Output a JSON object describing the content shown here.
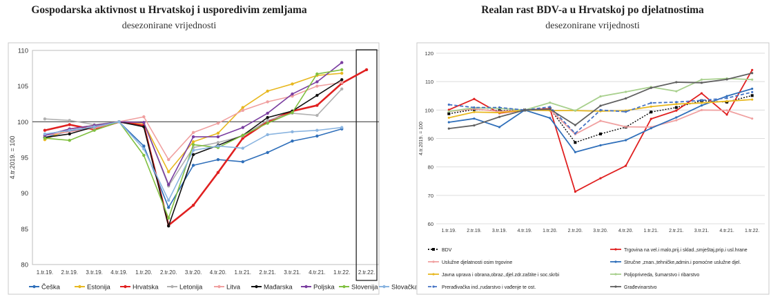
{
  "chart_data": [
    {
      "type": "line",
      "title": "Gospodarska aktivnost u Hrvatskoj i usporedivim zemljama",
      "subtitle": "desezonirane vrijednosti",
      "ylabel": "4.tr.2019. = 100",
      "xlabel": "",
      "ylim": [
        80,
        110
      ],
      "yticks": [
        80,
        85,
        90,
        95,
        100,
        105,
        110
      ],
      "grid": false,
      "legend": "bottom",
      "reference_line": 100,
      "highlight_box_category": "2.tr.22.",
      "categories": [
        "1.tr.19.",
        "2.tr.19.",
        "3.tr.19.",
        "4.tr.19.",
        "1.tr.20.",
        "2.tr.20.",
        "3.tr.20.",
        "4.tr.20.",
        "1.tr.21.",
        "2.tr.21.",
        "3.tr.21.",
        "4.tr.21.",
        "1.tr.22.",
        "2.tr.22."
      ],
      "series": [
        {
          "name": "Češka",
          "color": "#2f6fba",
          "values": [
            97.8,
            98.7,
            99.2,
            100,
            96.6,
            88.0,
            93.9,
            94.7,
            94.4,
            95.7,
            97.3,
            98.0,
            99.0,
            null
          ]
        },
        {
          "name": "Estonija",
          "color": "#e8b820",
          "values": [
            97.5,
            99.0,
            99.5,
            100,
            99.8,
            93.0,
            97.2,
            98.4,
            102.0,
            104.3,
            105.3,
            106.5,
            106.8,
            null
          ]
        },
        {
          "name": "Hrvatska",
          "color": "#e02020",
          "values": [
            98.8,
            99.6,
            98.9,
            100,
            99.5,
            85.5,
            88.3,
            92.9,
            97.7,
            100.0,
            101.5,
            102.3,
            105.4,
            107.3
          ]
        },
        {
          "name": "Letonija",
          "color": "#b0b0b0",
          "values": [
            100.4,
            100.2,
            99.6,
            100,
            99.9,
            91.0,
            96.4,
            97.1,
            98.0,
            100.2,
            101.2,
            100.9,
            104.6,
            null
          ]
        },
        {
          "name": "Litva",
          "color": "#f0a0a0",
          "values": [
            98.1,
            98.6,
            99.1,
            100,
            100.7,
            94.7,
            98.5,
            99.8,
            101.6,
            102.8,
            103.6,
            105.0,
            105.5,
            null
          ]
        },
        {
          "name": "Mađarska",
          "color": "#111111",
          "values": [
            97.8,
            98.3,
            99.3,
            100,
            99.3,
            85.4,
            95.4,
            96.7,
            98.1,
            100.6,
            101.5,
            103.7,
            105.9,
            null
          ]
        },
        {
          "name": "Poljska",
          "color": "#7a3ea0",
          "values": [
            98.1,
            99.0,
            99.5,
            100,
            99.9,
            91.2,
            97.9,
            97.9,
            99.2,
            101.2,
            103.9,
            105.6,
            108.3,
            null
          ]
        },
        {
          "name": "Slovenija",
          "color": "#80c040",
          "values": [
            97.7,
            97.4,
            98.8,
            100,
            95.3,
            86.5,
            96.8,
            96.4,
            98.1,
            99.8,
            101.3,
            106.7,
            107.3,
            null
          ]
        },
        {
          "name": "Slovačka",
          "color": "#8ab4e0",
          "values": [
            98.3,
            98.8,
            99.3,
            100,
            96.2,
            89.0,
            96.0,
            96.6,
            96.3,
            98.2,
            98.6,
            98.8,
            99.2,
            null
          ]
        }
      ]
    },
    {
      "type": "line",
      "title": "Realan rast BDV-a u Hrvatskoj po djelatnostima",
      "subtitle": "desezonirane vrijednosti",
      "ylabel": "4.tr.2019. = 100",
      "xlabel": "",
      "ylim": [
        60,
        120
      ],
      "yticks": [
        60,
        70,
        80,
        90,
        100,
        110,
        120
      ],
      "grid": true,
      "legend": "bottom",
      "categories": [
        "1.tr.19.",
        "2.tr.19.",
        "3.tr.19.",
        "4.tr.19.",
        "1.tr.20.",
        "2.tr.20.",
        "3.tr.20.",
        "4.tr.20.",
        "1.tr.21.",
        "2.tr.21.",
        "3.tr.21.",
        "4.tr.21.",
        "1.tr.22."
      ],
      "series": [
        {
          "name": "BDV",
          "color": "#000000",
          "dash": "dot",
          "values": [
            98.7,
            100.2,
            99.8,
            100,
            100.5,
            88.6,
            91.6,
            94.0,
            99.3,
            100.9,
            103.3,
            102.8,
            105.1
          ]
        },
        {
          "name": "Trgovina na vel.i malo,prij.i sklad.,smještaj,prip.i usl.hrane",
          "color": "#e02020",
          "dash": "solid",
          "values": [
            100.1,
            103.9,
            98.9,
            100,
            100.5,
            71.3,
            76.0,
            80.4,
            96.9,
            99.8,
            105.9,
            98.4,
            114.1
          ]
        },
        {
          "name": "Uslužne djelatnosti osim trgovine",
          "color": "#f0a0a0",
          "dash": "solid",
          "values": [
            99.5,
            100.4,
            99.5,
            100,
            100.2,
            91.5,
            96.2,
            94.1,
            94.0,
            96.4,
            100.0,
            99.9,
            97.0
          ]
        },
        {
          "name": "Stručne ,znan.,tehničke,admin.i pomoćne uslužne djel.",
          "color": "#2f6fba",
          "dash": "solid",
          "values": [
            95.7,
            97.0,
            94.0,
            100,
            97.2,
            85.2,
            87.6,
            89.4,
            93.6,
            97.4,
            101.6,
            104.9,
            107.5
          ]
        },
        {
          "name": "Javna uprava i obrana,obraz.,djel.zdr.zaštite i soc.skrbi",
          "color": "#e8b820",
          "dash": "solid",
          "values": [
            97.3,
            99.3,
            99.1,
            100,
            99.8,
            99.8,
            99.6,
            99.8,
            101.2,
            102.1,
            102.5,
            103.1,
            103.7
          ]
        },
        {
          "name": "Poljoprivreda, šumarstvo i ribarstvo",
          "color": "#a8d08d",
          "dash": "solid",
          "values": [
            99.5,
            100.8,
            100.6,
            100,
            102.6,
            99.8,
            104.8,
            106.4,
            108.1,
            106.6,
            110.7,
            111.1,
            110.7
          ]
        },
        {
          "name": "Prerađivačka ind.,rudarstvo i vađenje te ost.",
          "color": "#4472c4",
          "dash": "dash",
          "values": [
            101.9,
            100.9,
            100.9,
            100,
            101.1,
            91.8,
            100.0,
            99.4,
            102.5,
            102.8,
            103.4,
            104.2,
            106.3
          ]
        },
        {
          "name": "Građevinarstvo",
          "color": "#606060",
          "dash": "solid",
          "values": [
            93.5,
            94.6,
            97.6,
            100,
            100.3,
            94.7,
            101.5,
            104.1,
            107.8,
            109.8,
            109.6,
            110.8,
            113.0
          ]
        }
      ]
    }
  ]
}
